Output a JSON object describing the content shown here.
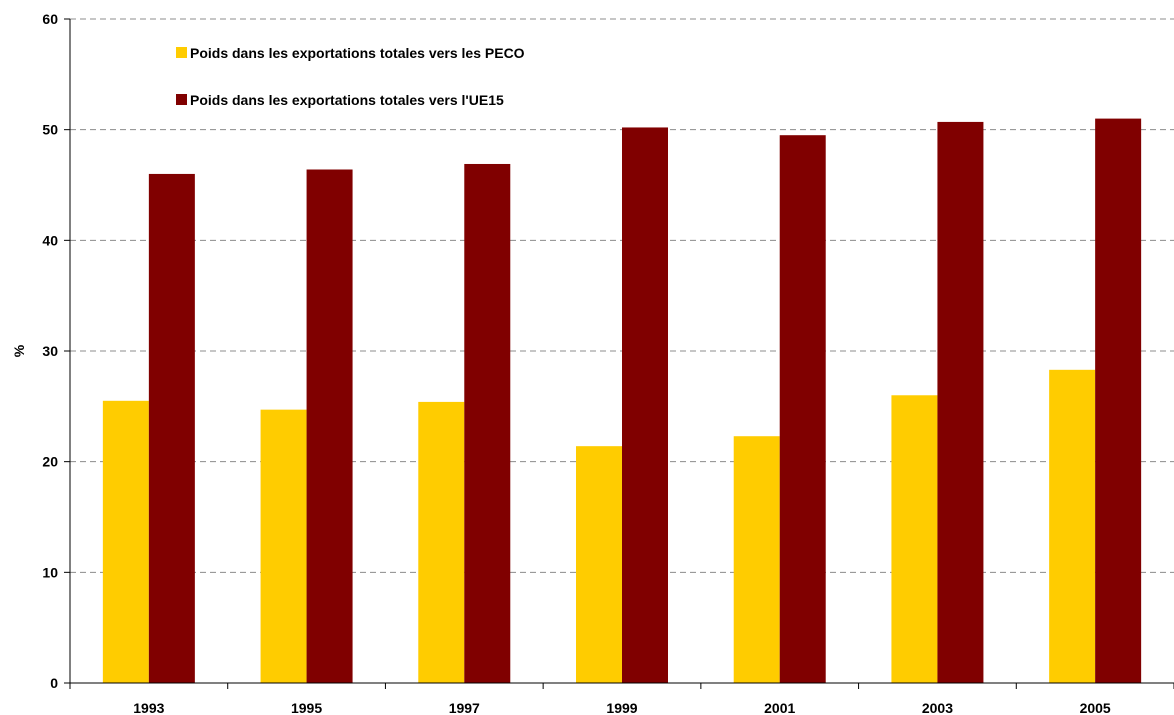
{
  "chart_data": {
    "type": "bar",
    "categories": [
      "1993",
      "1995",
      "1997",
      "1999",
      "2001",
      "2003",
      "2005"
    ],
    "series": [
      {
        "name": "Poids dans les exportations totales vers les PECO",
        "color": "#ffcc00",
        "values": [
          25.5,
          24.7,
          25.4,
          21.4,
          22.3,
          26.0,
          28.3
        ]
      },
      {
        "name": "Poids dans les exportations totales vers l'UE15",
        "color": "#800000",
        "values": [
          46.0,
          46.4,
          46.9,
          50.2,
          49.5,
          50.7,
          51.0
        ]
      }
    ],
    "ylabel": "%",
    "xlabel": "",
    "ylim": [
      0,
      60
    ],
    "yticks": [
      0,
      10,
      20,
      30,
      40,
      50,
      60
    ],
    "grid": true,
    "legend": "top-left"
  }
}
